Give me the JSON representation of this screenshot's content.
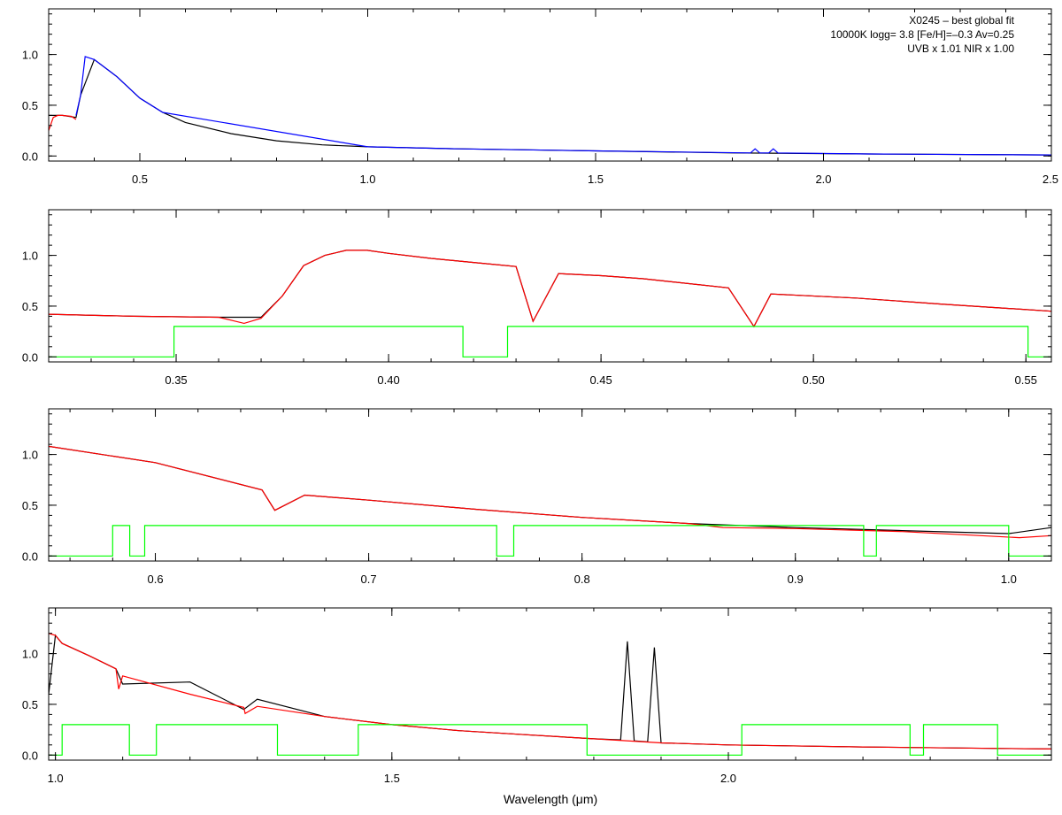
{
  "chart_data": [
    {
      "type": "line",
      "panel": 1,
      "xlim": [
        0.3,
        2.5
      ],
      "ylim": [
        -0.05,
        1.45
      ],
      "xticks": [
        0.5,
        1.0,
        1.5,
        2.0,
        2.5
      ],
      "xtick_labels": [
        "0.5",
        "1.0",
        "1.5",
        "2.0",
        "2.5"
      ],
      "yticks": [
        0.0,
        0.5,
        1.0
      ],
      "ytick_labels": [
        "0.0",
        "0.5",
        "1.0"
      ],
      "annotations": [
        "X0245 – best global fit",
        "10000K logg= 3.8 [Fe/H]=–0.3 Av=0.25",
        "UVB x 1.01  NIR x 1.00"
      ],
      "series": [
        {
          "color": "#000000",
          "x": [
            0.3,
            0.33,
            0.36,
            0.37,
            0.4,
            0.45,
            0.5,
            0.55,
            0.6,
            0.7,
            0.8,
            0.9,
            1.0,
            1.2,
            1.5,
            1.8,
            2.1,
            2.5
          ],
          "y": [
            0.4,
            0.4,
            0.38,
            0.6,
            0.95,
            0.78,
            0.57,
            0.43,
            0.33,
            0.22,
            0.15,
            0.11,
            0.09,
            0.07,
            0.05,
            0.03,
            0.02,
            0.01
          ]
        },
        {
          "color": "#ff0000",
          "x": [
            0.3,
            0.31,
            0.32,
            0.33,
            0.35,
            0.36
          ],
          "y": [
            0.25,
            0.38,
            0.4,
            0.4,
            0.39,
            0.36
          ]
        },
        {
          "color": "#0000ff",
          "x": [
            0.36,
            0.37,
            0.38,
            0.4,
            0.45,
            0.5,
            0.55,
            1.0,
            1.2,
            1.5,
            1.84,
            1.85,
            1.86,
            1.88,
            1.89,
            1.9,
            2.1,
            2.5
          ],
          "y": [
            0.4,
            0.6,
            0.98,
            0.95,
            0.78,
            0.57,
            0.43,
            0.09,
            0.07,
            0.05,
            0.03,
            0.07,
            0.03,
            0.03,
            0.07,
            0.03,
            0.02,
            0.01
          ]
        }
      ]
    },
    {
      "type": "line",
      "panel": 2,
      "xlim": [
        0.32,
        0.556
      ],
      "ylim": [
        -0.05,
        1.45
      ],
      "xticks": [
        0.35,
        0.4,
        0.45,
        0.5,
        0.55
      ],
      "xtick_labels": [
        "0.35",
        "0.40",
        "0.45",
        "0.50",
        "0.55"
      ],
      "yticks": [
        0.0,
        0.5,
        1.0
      ],
      "ytick_labels": [
        "0.0",
        "0.5",
        "1.0"
      ],
      "series": [
        {
          "color": "#000000",
          "x": [
            0.32,
            0.34,
            0.36,
            0.37,
            0.375,
            0.38,
            0.385,
            0.39,
            0.395,
            0.4,
            0.41,
            0.42,
            0.43,
            0.434,
            0.44,
            0.45,
            0.46,
            0.48,
            0.486,
            0.49,
            0.51,
            0.53,
            0.556
          ],
          "y": [
            0.42,
            0.4,
            0.39,
            0.39,
            0.6,
            0.9,
            1.0,
            1.05,
            1.05,
            1.02,
            0.97,
            0.93,
            0.89,
            0.35,
            0.82,
            0.8,
            0.77,
            0.68,
            0.3,
            0.62,
            0.58,
            0.52,
            0.45
          ]
        },
        {
          "color": "#ff0000",
          "x": [
            0.32,
            0.34,
            0.36,
            0.366,
            0.37,
            0.375,
            0.38,
            0.385,
            0.39,
            0.395,
            0.4,
            0.41,
            0.42,
            0.43,
            0.434,
            0.44,
            0.45,
            0.46,
            0.48,
            0.486,
            0.49,
            0.51,
            0.53,
            0.556
          ],
          "y": [
            0.42,
            0.4,
            0.39,
            0.33,
            0.38,
            0.6,
            0.9,
            1.0,
            1.05,
            1.05,
            1.02,
            0.97,
            0.93,
            0.89,
            0.35,
            0.82,
            0.8,
            0.77,
            0.68,
            0.3,
            0.62,
            0.58,
            0.52,
            0.45
          ]
        },
        {
          "color": "#00ff00",
          "x": [
            0.32,
            0.3495,
            0.3495,
            0.4175,
            0.4175,
            0.428,
            0.428,
            0.5505,
            0.5505,
            0.556
          ],
          "y": [
            0.0,
            0.0,
            0.3,
            0.3,
            0.0,
            0.0,
            0.3,
            0.3,
            0.0,
            0.0
          ]
        }
      ]
    },
    {
      "type": "line",
      "panel": 3,
      "xlim": [
        0.55,
        1.02
      ],
      "ylim": [
        -0.05,
        1.45
      ],
      "xticks": [
        0.6,
        0.7,
        0.8,
        0.9,
        1.0
      ],
      "xtick_labels": [
        "0.6",
        "0.7",
        "0.8",
        "0.9",
        "1.0"
      ],
      "yticks": [
        0.0,
        0.5,
        1.0
      ],
      "ytick_labels": [
        "0.0",
        "0.5",
        "1.0"
      ],
      "series": [
        {
          "color": "#000000",
          "x": [
            0.55,
            0.6,
            0.65,
            0.656,
            0.67,
            0.7,
            0.75,
            0.8,
            0.85,
            0.9,
            0.95,
            1.0,
            1.02
          ],
          "y": [
            1.08,
            0.92,
            0.65,
            0.45,
            0.6,
            0.55,
            0.46,
            0.38,
            0.32,
            0.28,
            0.25,
            0.22,
            0.28
          ]
        },
        {
          "color": "#ff0000",
          "x": [
            0.55,
            0.6,
            0.65,
            0.656,
            0.67,
            0.7,
            0.75,
            0.8,
            0.85,
            0.866,
            0.9,
            0.95,
            1.005,
            1.02
          ],
          "y": [
            1.08,
            0.92,
            0.65,
            0.45,
            0.6,
            0.55,
            0.46,
            0.38,
            0.32,
            0.28,
            0.27,
            0.24,
            0.18,
            0.2
          ]
        },
        {
          "color": "#00ff00",
          "x": [
            0.55,
            0.58,
            0.58,
            0.588,
            0.588,
            0.595,
            0.595,
            0.76,
            0.76,
            0.768,
            0.768,
            0.932,
            0.932,
            0.938,
            0.938,
            1.0,
            1.0,
            1.02
          ],
          "y": [
            0.0,
            0.0,
            0.3,
            0.3,
            0.0,
            0.0,
            0.3,
            0.3,
            0.0,
            0.0,
            0.3,
            0.3,
            0.0,
            0.0,
            0.3,
            0.3,
            0.0,
            0.0
          ]
        }
      ]
    },
    {
      "type": "line",
      "panel": 4,
      "xlim": [
        0.99,
        2.48
      ],
      "ylim": [
        -0.05,
        1.45
      ],
      "xticks": [
        1.0,
        1.5,
        2.0
      ],
      "xtick_labels": [
        "1.0",
        "1.5",
        "2.0"
      ],
      "yticks": [
        0.0,
        0.5,
        1.0
      ],
      "ytick_labels": [
        "0.0",
        "0.5",
        "1.0"
      ],
      "xlabel": "Wavelength (μm)",
      "series": [
        {
          "color": "#000000",
          "x": [
            0.99,
            1.0,
            1.01,
            1.05,
            1.09,
            1.1,
            1.2,
            1.28,
            1.3,
            1.4,
            1.5,
            1.6,
            1.7,
            1.8,
            1.84,
            1.85,
            1.86,
            1.88,
            1.89,
            1.9,
            2.0,
            2.2,
            2.48
          ],
          "y": [
            0.6,
            1.18,
            1.1,
            0.98,
            0.85,
            0.7,
            0.72,
            0.45,
            0.55,
            0.38,
            0.3,
            0.24,
            0.2,
            0.16,
            0.15,
            1.12,
            0.14,
            0.13,
            1.06,
            0.12,
            0.1,
            0.08,
            0.06
          ]
        },
        {
          "color": "#ff0000",
          "x": [
            0.99,
            1.0,
            1.01,
            1.05,
            1.09,
            1.094,
            1.1,
            1.2,
            1.28,
            1.282,
            1.3,
            1.4,
            1.5,
            1.6,
            1.7,
            1.8,
            1.9,
            2.0,
            2.2,
            2.48
          ],
          "y": [
            1.2,
            1.18,
            1.1,
            0.98,
            0.85,
            0.65,
            0.78,
            0.6,
            0.47,
            0.41,
            0.48,
            0.38,
            0.3,
            0.24,
            0.2,
            0.16,
            0.12,
            0.1,
            0.08,
            0.06
          ]
        },
        {
          "color": "#00ff00",
          "x": [
            0.99,
            1.01,
            1.01,
            1.11,
            1.11,
            1.15,
            1.15,
            1.33,
            1.33,
            1.45,
            1.45,
            1.79,
            1.79,
            2.02,
            2.02,
            2.27,
            2.27,
            2.29,
            2.29,
            2.4,
            2.4,
            2.48
          ],
          "y": [
            0.0,
            0.0,
            0.3,
            0.3,
            0.0,
            0.0,
            0.3,
            0.3,
            0.0,
            0.0,
            0.3,
            0.3,
            0.0,
            0.0,
            0.3,
            0.3,
            0.0,
            0.0,
            0.3,
            0.3,
            0.0,
            0.0
          ]
        }
      ]
    }
  ]
}
